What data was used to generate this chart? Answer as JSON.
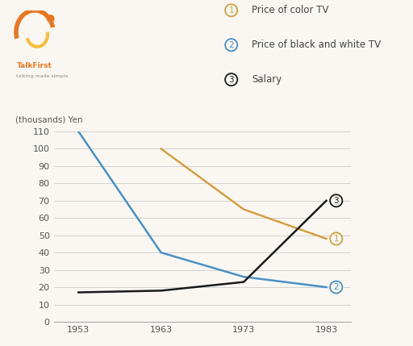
{
  "years_all": [
    1953,
    1963,
    1973,
    1983
  ],
  "years_color_tv": [
    1963,
    1973,
    1983
  ],
  "color_tv": [
    100,
    65,
    48
  ],
  "bw_tv": [
    110,
    40,
    26,
    20
  ],
  "salary": [
    17,
    18,
    23,
    70
  ],
  "color_tv_color": "#D4A040",
  "bw_tv_color": "#4A90C4",
  "salary_color": "#1A1A1A",
  "bg_color": "#FAF7F2",
  "ylabel": "(thousands) Yen",
  "ylim": [
    0,
    110
  ],
  "yticks": [
    0,
    10,
    20,
    30,
    40,
    50,
    60,
    70,
    80,
    90,
    100,
    110
  ],
  "xticks": [
    1953,
    1963,
    1973,
    1983
  ],
  "legend_items": [
    {
      "num": "1",
      "label": "Price of color TV",
      "color": "#D4A040"
    },
    {
      "num": "2",
      "label": "Price of black and white TV",
      "color": "#4A90C4"
    },
    {
      "num": "3",
      "label": "Salary",
      "color": "#1A1A1A"
    }
  ]
}
